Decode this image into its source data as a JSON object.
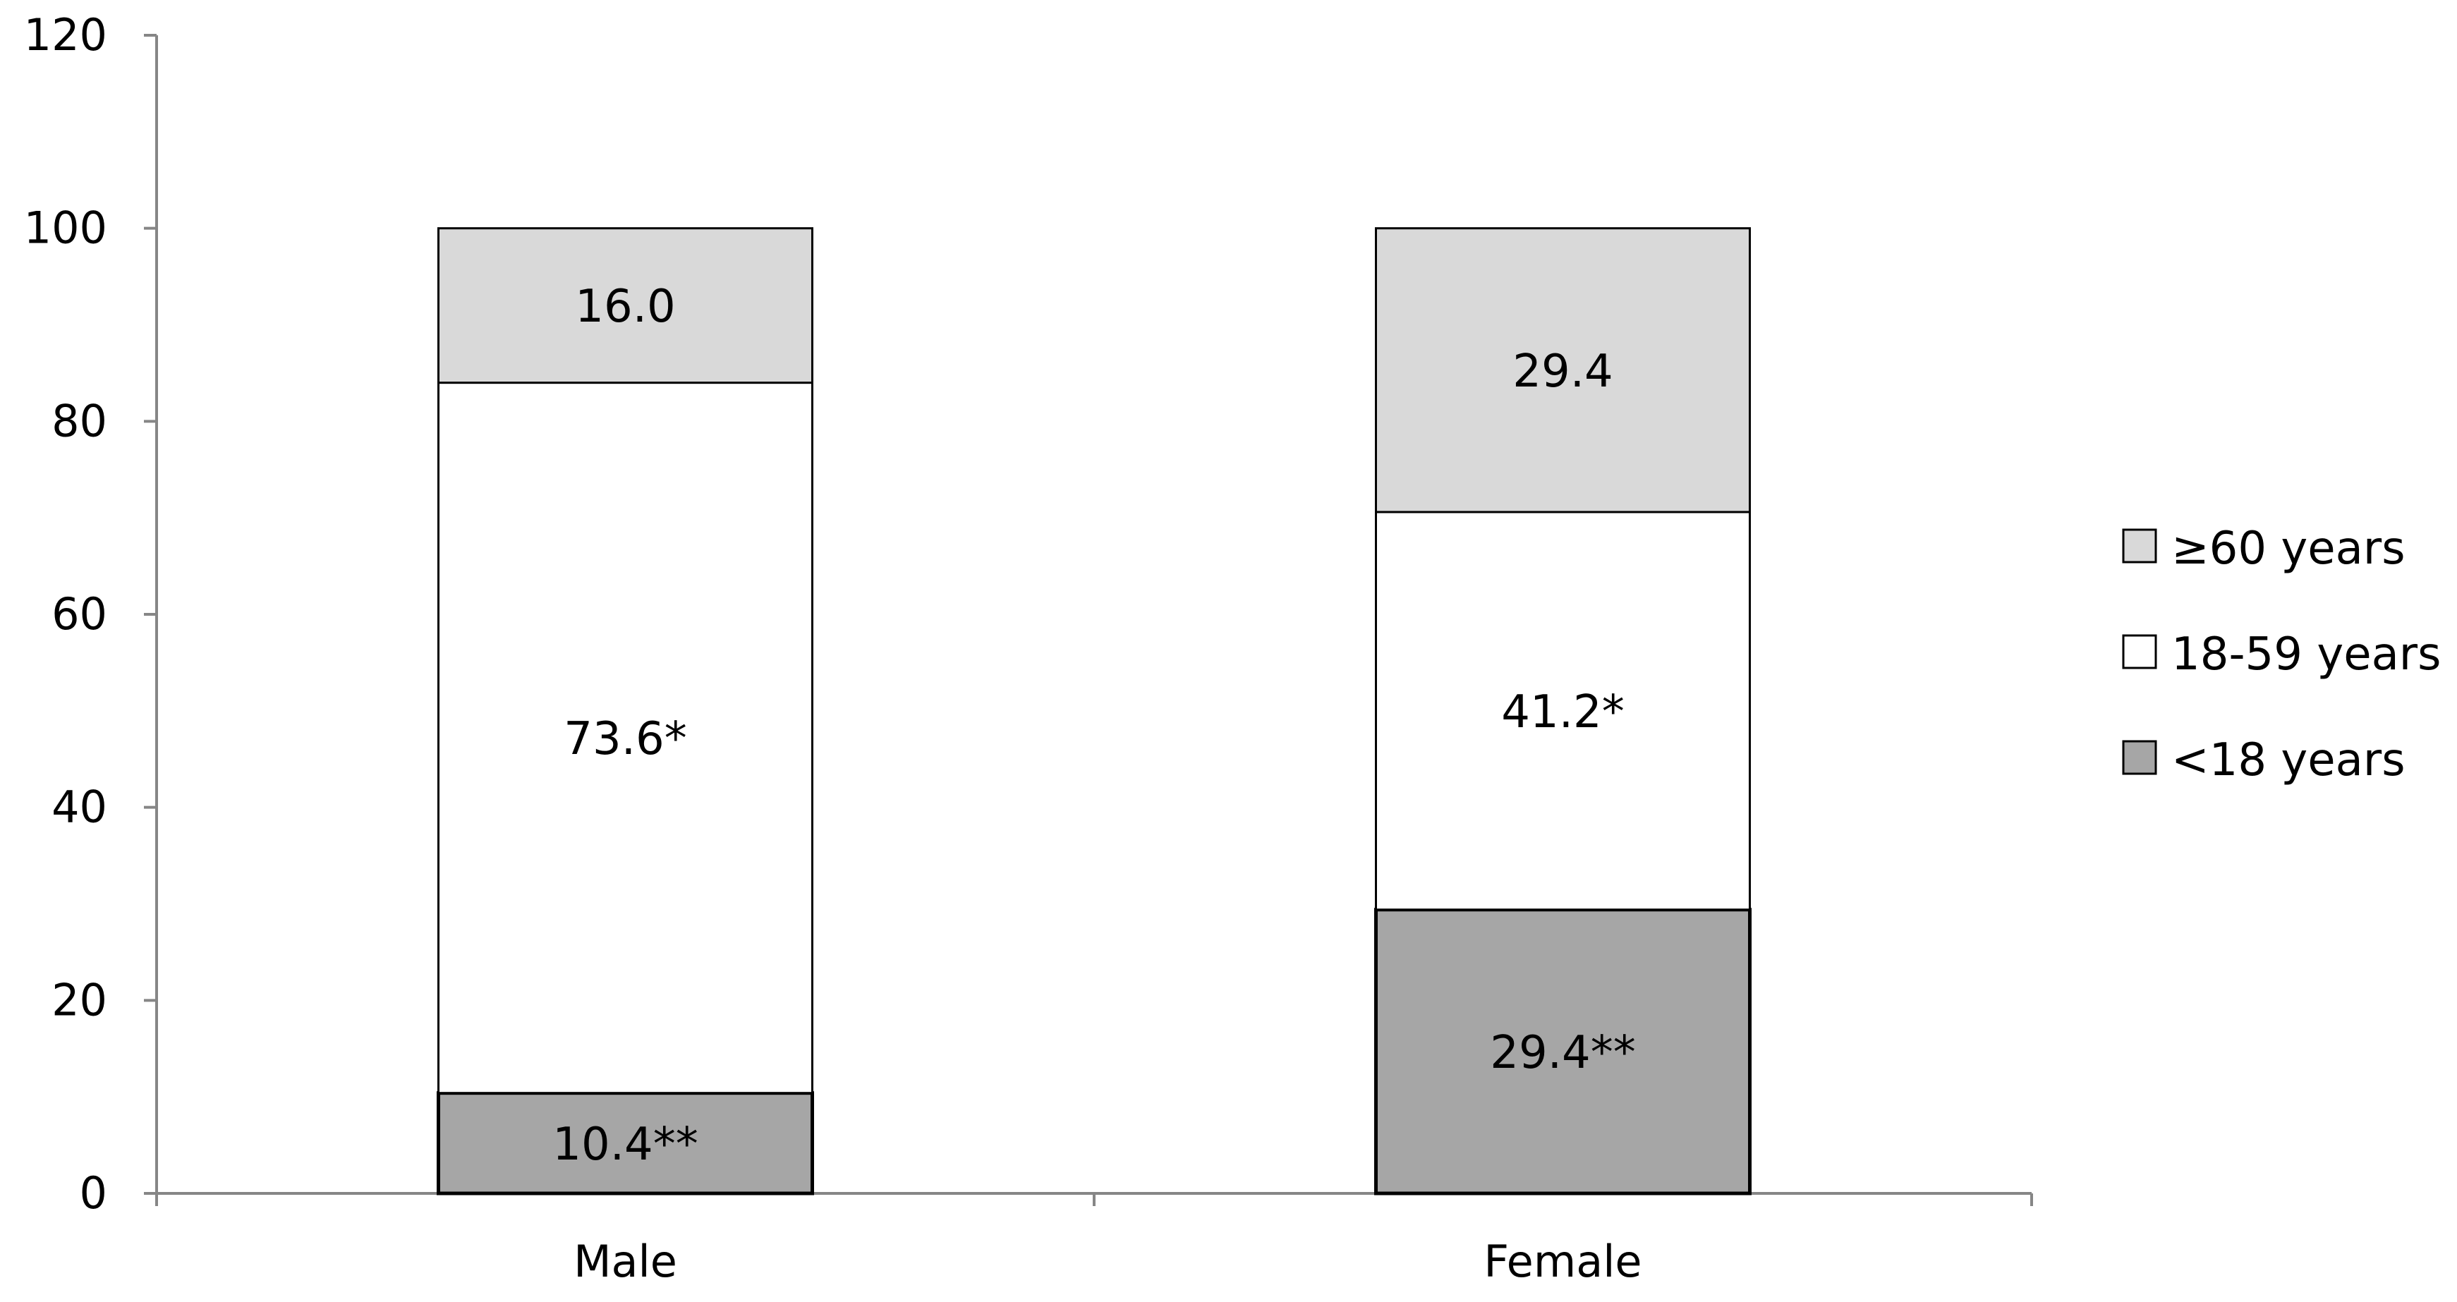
{
  "chart_data": {
    "type": "bar",
    "stacked": true,
    "title": "",
    "xlabel": "",
    "ylabel": "",
    "categories": [
      "Male",
      "Female"
    ],
    "ylim": [
      0,
      120
    ],
    "yticks": [
      0,
      20,
      40,
      60,
      80,
      100,
      120
    ],
    "grid": false,
    "legend_position": "right",
    "series": [
      {
        "name": "<18 years",
        "values": [
          10.4,
          29.4
        ],
        "labels": [
          "10.4**",
          "29.4**"
        ],
        "color": "#a6a6a6"
      },
      {
        "name": "18-59 years",
        "values": [
          73.6,
          41.2
        ],
        "labels": [
          "73.6*",
          "41.2*"
        ],
        "color": "#ffffff"
      },
      {
        "name": "≥60 years",
        "values": [
          16.0,
          29.4
        ],
        "labels": [
          "16.0",
          "29.4"
        ],
        "color": "#d9d9d9"
      }
    ],
    "legend_order": [
      "≥60 years",
      "18-59 years",
      "<18 years"
    ]
  }
}
